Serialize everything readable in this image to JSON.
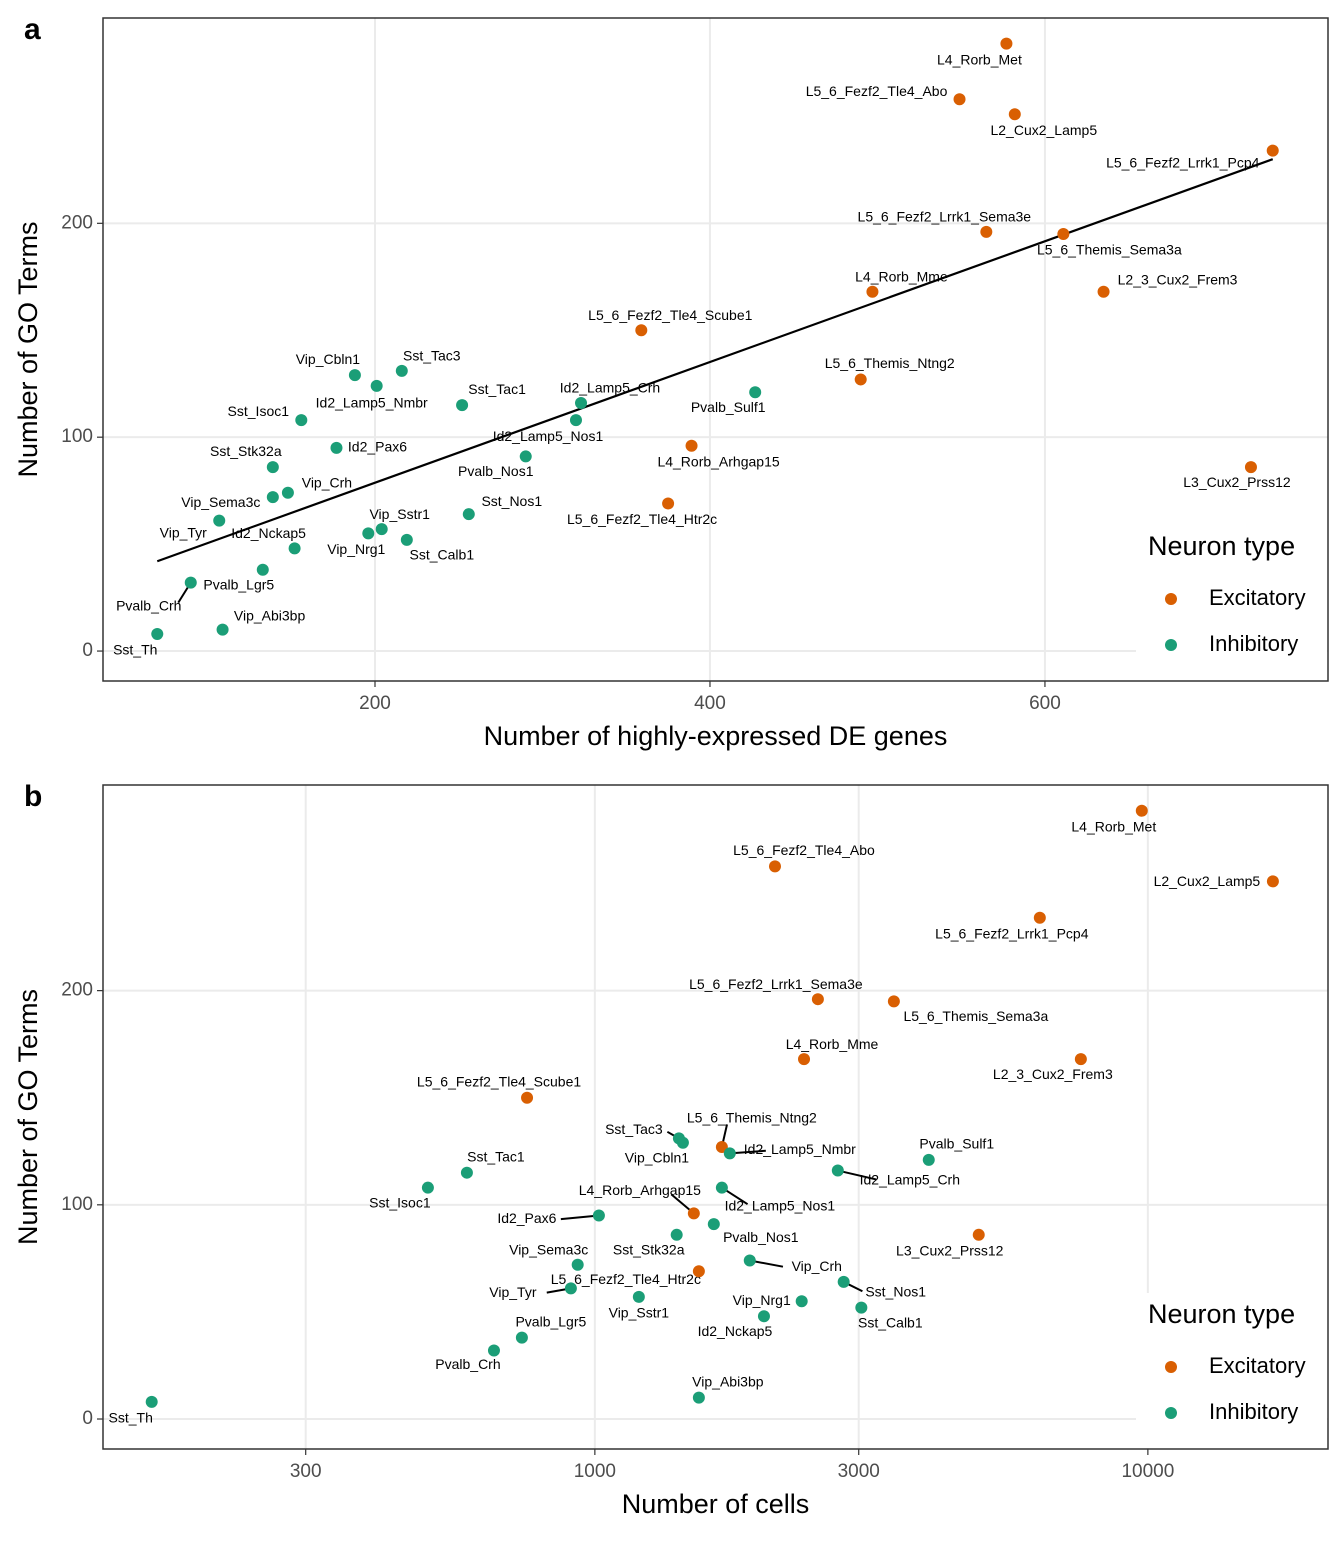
{
  "chart_data": [
    {
      "type": "scatter",
      "panel_label": "a",
      "xlabel": "Number of highly-expressed DE genes",
      "ylabel": "Number of GO Terms",
      "x_scale": "linear",
      "grid": true,
      "xlim": [
        37.6,
        769
      ],
      "ylim": [
        -14,
        296
      ],
      "xticks": [
        200,
        400,
        600
      ],
      "yticks": [
        0,
        100,
        200
      ],
      "legend": {
        "title": "Neuron type",
        "position": "lower right"
      },
      "trend_line": {
        "x": [
          70,
          736
        ],
        "y": [
          42,
          230
        ]
      },
      "series": [
        {
          "name": "Excitatory",
          "color": "#d95f02",
          "labels": [
            "L4_Rorb_Met",
            "L5_6_Fezf2_Tle4_Abo",
            "L2_Cux2_Lamp5",
            "L5_6_Fezf2_Lrrk1_Pcp4",
            "L5_6_Fezf2_Lrrk1_Sema3e",
            "L5_6_Themis_Sema3a",
            "L4_Rorb_Mme",
            "L2_3_Cux2_Frem3",
            "L5_6_Fezf2_Tle4_Scube1",
            "L5_6_Themis_Ntng2",
            "L4_Rorb_Arhgap15",
            "L5_6_Fezf2_Tle4_Htr2c",
            "L3_Cux2_Prss12"
          ],
          "x": [
            577,
            549,
            582,
            736,
            565,
            611,
            497,
            635,
            359,
            490,
            389,
            375,
            723
          ],
          "y": [
            284,
            258,
            251,
            234,
            196,
            195,
            168,
            168,
            150,
            127,
            96,
            69,
            86
          ]
        },
        {
          "name": "Inhibitory",
          "color": "#1b9e77",
          "labels": [
            "Pvalb_Sulf1",
            "Id2_Lamp5_Crh",
            "Id2_Lamp5_Nos1",
            "Pvalb_Nos1",
            "Sst_Nos1",
            "Sst_Tac1",
            "Sst_Tac3",
            "Vip_Cbln1",
            "Id2_Lamp5_Nmbr",
            "Sst_Isoc1",
            "Id2_Pax6",
            "Sst_Stk32a",
            "Vip_Crh",
            "Vip_Sema3c",
            "Vip_Tyr",
            "Id2_Nckap5",
            "Vip_Sstr1",
            "Vip_Nrg1",
            "Sst_Calb1",
            "Pvalb_Lgr5",
            "Pvalb_Crh",
            "Vip_Abi3bp",
            "Sst_Th"
          ],
          "x": [
            427,
            323,
            320,
            290,
            256,
            252,
            216,
            188,
            201,
            156,
            177,
            139,
            148,
            139,
            107,
            152,
            204,
            196,
            219,
            133,
            90,
            109,
            70
          ],
          "y": [
            121,
            116,
            108,
            91,
            64,
            115,
            131,
            129,
            124,
            108,
            95,
            86,
            74,
            72,
            61,
            48,
            57,
            55,
            52,
            38,
            32,
            10,
            8
          ]
        }
      ]
    },
    {
      "type": "scatter",
      "panel_label": "b",
      "xlabel": "Number of cells",
      "ylabel": "Number of GO Terms",
      "x_scale": "log",
      "grid": true,
      "xlim": [
        129,
        21170
      ],
      "ylim": [
        -14,
        296
      ],
      "xticks": [
        300,
        1000,
        3000,
        10000
      ],
      "yticks": [
        0,
        100,
        200
      ],
      "legend": {
        "title": "Neuron type",
        "position": "lower right"
      },
      "series": [
        {
          "name": "Excitatory",
          "color": "#d95f02",
          "labels": [
            "L4_Rorb_Met",
            "L5_6_Fezf2_Tle4_Abo",
            "L2_Cux2_Lamp5",
            "L5_6_Fezf2_Lrrk1_Pcp4",
            "L5_6_Fezf2_Lrrk1_Sema3e",
            "L5_6_Themis_Sema3a",
            "L4_Rorb_Mme",
            "L2_3_Cux2_Frem3",
            "L5_6_Fezf2_Tle4_Scube1",
            "L5_6_Themis_Ntng2",
            "L4_Rorb_Arhgap15",
            "L5_6_Fezf2_Tle4_Htr2c",
            "L3_Cux2_Prss12"
          ],
          "x": [
            9750,
            2117,
            16830,
            6377,
            2531,
            3473,
            2389,
            7565,
            754,
            1697,
            1510,
            1542,
            4945
          ],
          "y": [
            284,
            258,
            251,
            234,
            196,
            195,
            168,
            168,
            150,
            127,
            96,
            69,
            86
          ]
        },
        {
          "name": "Inhibitory",
          "color": "#1b9e77",
          "labels": [
            "Pvalb_Sulf1",
            "Id2_Lamp5_Crh",
            "Id2_Lamp5_Nos1",
            "Pvalb_Nos1",
            "Sst_Nos1",
            "Sst_Tac1",
            "Sst_Tac3",
            "Vip_Cbln1",
            "Id2_Lamp5_Nmbr",
            "Sst_Isoc1",
            "Id2_Pax6",
            "Sst_Stk32a",
            "Vip_Crh",
            "Vip_Sema3c",
            "Vip_Tyr",
            "Id2_Nckap5",
            "Vip_Sstr1",
            "Vip_Nrg1",
            "Sst_Calb1",
            "Pvalb_Lgr5",
            "Pvalb_Crh",
            "Vip_Abi3bp",
            "Sst_Th"
          ],
          "x": [
            4016,
            2750,
            1697,
            1641,
            2818,
            587,
            1419,
            1443,
            1754,
            499,
            1017,
            1406,
            1906,
            931,
            905,
            2022,
            1201,
            2366,
            3033,
            738,
            657,
            1542,
            158
          ],
          "y": [
            121,
            116,
            108,
            91,
            64,
            115,
            131,
            129,
            124,
            108,
            95,
            86,
            74,
            72,
            61,
            48,
            57,
            55,
            52,
            38,
            32,
            10,
            8
          ]
        }
      ]
    }
  ]
}
